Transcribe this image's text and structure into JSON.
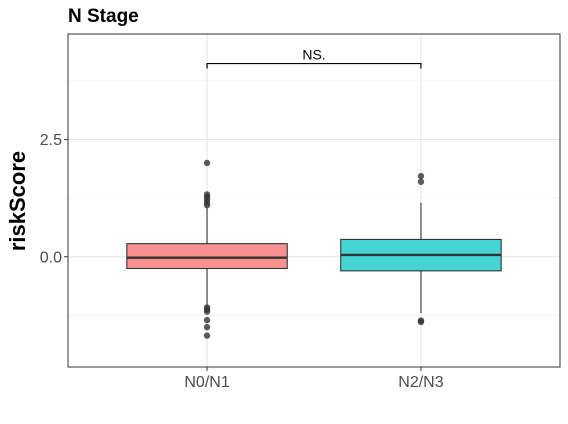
{
  "chart_data": {
    "type": "box",
    "title": "N Stage",
    "xlabel": "",
    "ylabel": "riskScore",
    "ylim": [
      -2.35,
      4.75
    ],
    "yticks": [
      0.0,
      2.5
    ],
    "ytick_labels": [
      "0.0",
      "2.5"
    ],
    "grid": true,
    "categories": [
      "N0/N1",
      "N2/N3"
    ],
    "boxes": [
      {
        "category": "N0/N1",
        "color": "#f8918f",
        "q1": -0.25,
        "median": -0.02,
        "q3": 0.28,
        "whisker_low": -1.05,
        "whisker_high": 1.05,
        "outliers": [
          2.0,
          1.33,
          1.28,
          1.22,
          1.16,
          1.1,
          -1.08,
          -1.12,
          -1.17,
          -1.35,
          -1.5,
          -1.68
        ]
      },
      {
        "category": "N2/N3",
        "color": "#45d4d4",
        "q1": -0.3,
        "median": 0.04,
        "q3": 0.37,
        "whisker_low": -1.2,
        "whisker_high": 1.15,
        "outliers": [
          1.72,
          1.6,
          -1.36,
          -1.39
        ]
      }
    ],
    "annotations": [
      {
        "text": "NS.",
        "between": [
          "N0/N1",
          "N2/N3"
        ],
        "y": 4.12
      }
    ]
  }
}
